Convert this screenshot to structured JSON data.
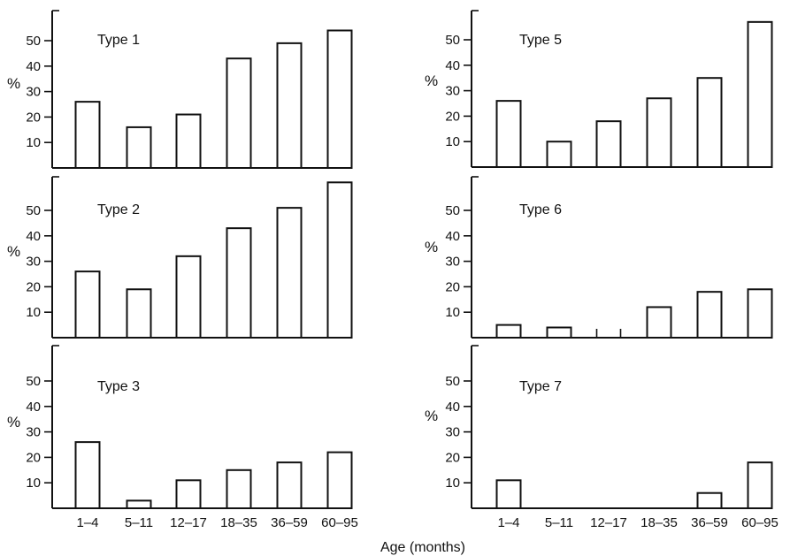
{
  "chart_data": {
    "type": "bar",
    "categories": [
      "1–4",
      "5–11",
      "12–17",
      "18–35",
      "36–59",
      "60–95"
    ],
    "xlabel": "Age (months)",
    "ylabel": "%",
    "yticks": [
      10,
      20,
      30,
      40,
      50
    ],
    "panels": [
      {
        "title": "Type 1",
        "ylim": [
          0,
          62
        ],
        "values": [
          26,
          16,
          21,
          43,
          49,
          54
        ]
      },
      {
        "title": "Type 2",
        "ylim": [
          0,
          62
        ],
        "values": [
          26,
          19,
          32,
          43,
          51,
          61
        ]
      },
      {
        "title": "Type 3",
        "ylim": [
          0,
          62
        ],
        "values": [
          26,
          3,
          11,
          15,
          18,
          22
        ]
      },
      {
        "title": "Type 5",
        "ylim": [
          0,
          62
        ],
        "values": [
          26,
          10,
          18,
          27,
          35,
          57
        ]
      },
      {
        "title": "Type 6",
        "ylim": [
          0,
          62
        ],
        "values": [
          5,
          4,
          0,
          12,
          18,
          19
        ]
      },
      {
        "title": "Type 7",
        "ylim": [
          0,
          62
        ],
        "values": [
          11,
          0,
          0,
          0,
          6,
          18
        ]
      }
    ]
  }
}
